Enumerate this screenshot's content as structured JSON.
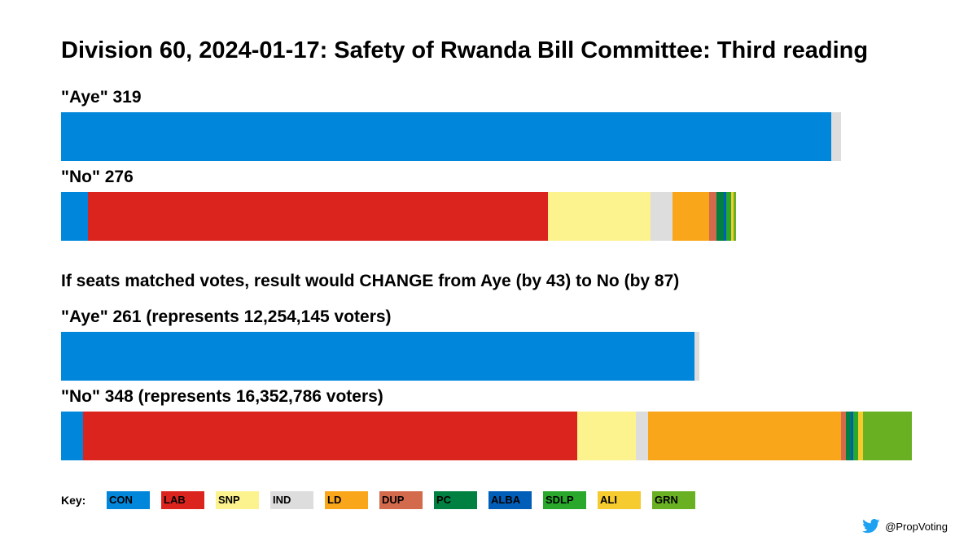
{
  "chart_data": {
    "type": "bar",
    "orientation": "horizontal-stacked",
    "title": "Division 60, 2024-01-17: Safety of Rwanda Bill Committee: Third reading",
    "scale_max": 348,
    "actual": {
      "aye": {
        "label": "\"Aye\" 319",
        "segments": [
          {
            "party": "CON",
            "value": 315
          },
          {
            "party": "IND",
            "value": 4
          }
        ]
      },
      "no": {
        "label": "\"No\" 276",
        "segments": [
          {
            "party": "CON",
            "value": 11
          },
          {
            "party": "LAB",
            "value": 188
          },
          {
            "party": "SNP",
            "value": 42
          },
          {
            "party": "IND",
            "value": 9
          },
          {
            "party": "LD",
            "value": 15
          },
          {
            "party": "DUP",
            "value": 3
          },
          {
            "party": "PC",
            "value": 3
          },
          {
            "party": "ALBA",
            "value": 1
          },
          {
            "party": "SDLP",
            "value": 2
          },
          {
            "party": "ALI",
            "value": 1
          },
          {
            "party": "GRN",
            "value": 1
          }
        ]
      }
    },
    "note": "If seats matched votes, result would CHANGE from Aye (by 43) to No (by 87)",
    "proportional": {
      "aye": {
        "label": "\"Aye\" 261 (represents 12,254,145 voters)",
        "segments": [
          {
            "party": "CON",
            "value": 259
          },
          {
            "party": "IND",
            "value": 2
          }
        ]
      },
      "no": {
        "label": "\"No\" 348 (represents 16,352,786 voters)",
        "segments": [
          {
            "party": "CON",
            "value": 9
          },
          {
            "party": "LAB",
            "value": 202
          },
          {
            "party": "SNP",
            "value": 24
          },
          {
            "party": "IND",
            "value": 5
          },
          {
            "party": "LD",
            "value": 79
          },
          {
            "party": "DUP",
            "value": 2
          },
          {
            "party": "PC",
            "value": 2
          },
          {
            "party": "ALBA",
            "value": 1
          },
          {
            "party": "SDLP",
            "value": 2
          },
          {
            "party": "ALI",
            "value": 2
          },
          {
            "party": "GRN",
            "value": 20
          }
        ]
      }
    },
    "legend": {
      "title": "Key:",
      "entries": [
        "CON",
        "LAB",
        "SNP",
        "IND",
        "LD",
        "DUP",
        "PC",
        "ALBA",
        "SDLP",
        "ALI",
        "GRN"
      ]
    },
    "party_colors": {
      "CON": "#0087dc",
      "LAB": "#dc241f",
      "SNP": "#fdf38e",
      "IND": "#dddddd",
      "LD": "#faa61a",
      "DUP": "#d46a4c",
      "PC": "#008142",
      "ALBA": "#005eb8",
      "SDLP": "#2aa82c",
      "ALI": "#f6cb2f",
      "GRN": "#6ab023"
    }
  },
  "credit": {
    "icon": "twitter-bird-icon",
    "handle": "@PropVoting"
  }
}
